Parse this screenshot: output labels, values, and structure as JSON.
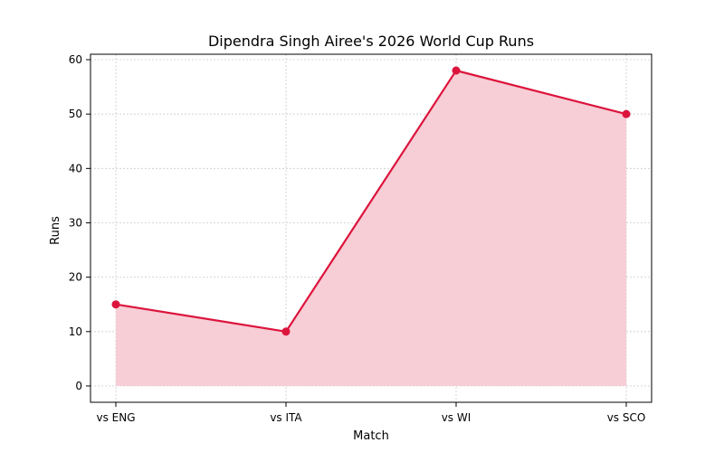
{
  "chart_data": {
    "type": "area",
    "title": "Dipendra Singh Airee's 2026 World Cup Runs",
    "xlabel": "Match",
    "ylabel": "Runs",
    "categories": [
      "vs ENG",
      "vs ITA",
      "vs WI",
      "vs SCO"
    ],
    "series": [
      {
        "values": [
          15,
          10,
          58,
          50
        ],
        "line_color": "#dc143c",
        "fill_color": "#f7cdd6"
      }
    ],
    "ylim": [
      -3,
      61
    ],
    "yticks": [
      0,
      10,
      20,
      30,
      40,
      50,
      60
    ],
    "grid": true,
    "markers": true
  }
}
